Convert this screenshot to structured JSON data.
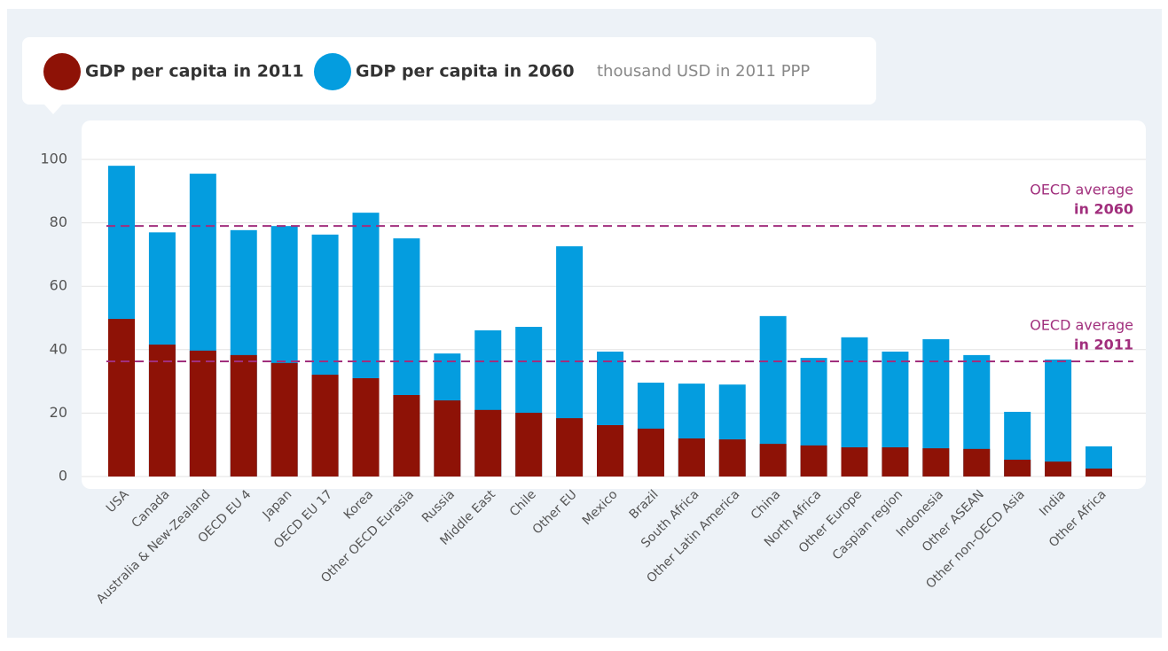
{
  "chart_data": {
    "type": "bar",
    "unit_label": "thousand USD in 2011 PPP",
    "categories": [
      "USA",
      "Canada",
      "Australia & New-Zealand",
      "OECD EU 4",
      "Japan",
      "OECD EU 17",
      "Korea",
      "Other OECD Eurasia",
      "Russia",
      "Middle East",
      "Chile",
      "Other EU",
      "Mexico",
      "Brazil",
      "South Africa",
      "Other Latin America",
      "China",
      "North Africa",
      "Other Europe",
      "Caspian region",
      "Indonesia",
      "Other ASEAN",
      "Other non-OECD Asia",
      "India",
      "Other Africa"
    ],
    "series": [
      {
        "name": "GDP per capita in 2011",
        "color": "#8e1206",
        "values": [
          49.7,
          41.6,
          39.7,
          38.3,
          35.8,
          32.1,
          31,
          25.7,
          24,
          21,
          20.1,
          18.4,
          16.2,
          15.1,
          12,
          11.7,
          10.3,
          9.8,
          9.2,
          9.2,
          8.9,
          8.7,
          5.3,
          4.7,
          2.5
        ]
      },
      {
        "name": "GDP per capita in 2060",
        "color": "#049ddf",
        "values": [
          98,
          77,
          95.5,
          77.7,
          79,
          76.3,
          83.2,
          75.1,
          38.8,
          46.1,
          47.2,
          72.6,
          39.4,
          29.6,
          29.3,
          29,
          50.6,
          37.4,
          43.9,
          39.4,
          43.3,
          38.3,
          20.4,
          36.9,
          9.5
        ]
      }
    ],
    "reference_lines": [
      {
        "label": "OECD average",
        "sublabel": "in 2060",
        "value": 79,
        "color": "#a12f7d"
      },
      {
        "label": "OECD average",
        "sublabel": "in 2011",
        "value": 36.3,
        "color": "#a12f7d"
      }
    ],
    "ylim": [
      0,
      100
    ],
    "yticks": [
      0,
      20,
      40,
      60,
      80,
      100
    ],
    "grid": true
  }
}
